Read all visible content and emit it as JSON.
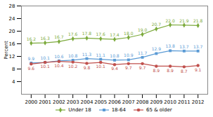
{
  "chart_data": {
    "type": "line",
    "x": [
      2000,
      2001,
      2002,
      2003,
      2004,
      2005,
      2006,
      2007,
      2008,
      2009,
      2010,
      2011,
      2012
    ],
    "series": [
      {
        "name": "Under 18",
        "color": "#7caa3c",
        "marker": "diamond",
        "values": [
          16.2,
          16.3,
          16.7,
          17.6,
          17.8,
          17.6,
          17.4,
          18.0,
          19.0,
          20.7,
          22.0,
          21.9,
          21.8
        ],
        "value_labels": [
          "16.2",
          "16.3",
          "16.7",
          "17.6",
          "17.8",
          "17.6",
          "17.4",
          "18.0",
          "19.0",
          "20.7",
          "22.0",
          "21.9",
          "21.8"
        ]
      },
      {
        "name": "18-64",
        "color": "#5b9bd5",
        "marker": "square",
        "values": [
          9.9,
          10.1,
          10.6,
          10.8,
          11.3,
          11.1,
          10.8,
          10.9,
          11.7,
          12.9,
          13.8,
          13.7,
          13.7
        ],
        "value_labels": [
          "9.9",
          "10.1",
          "10.6",
          "10.8",
          "11.3",
          "11.1",
          "10.8",
          "10.9",
          "11.7",
          "12.9",
          "13.8",
          "13.7",
          "13.7"
        ]
      },
      {
        "name": "65 & older",
        "color": "#c0504d",
        "marker": "circle",
        "values": [
          9.6,
          10.1,
          10.4,
          10.2,
          9.8,
          10.1,
          9.4,
          9.7,
          9.7,
          8.9,
          8.9,
          8.7,
          9.1
        ],
        "value_labels": [
          "9.6",
          "10.1",
          "10.4",
          "10.2",
          "9.8",
          "10.1",
          "9.4",
          "9.7",
          "9.7",
          "8.9",
          "8.9",
          "8.7",
          "9.1"
        ]
      }
    ],
    "ylabel": "Percent",
    "xlim": [
      1999.3,
      2012.7
    ],
    "xticks": [
      2000,
      2001,
      2002,
      2003,
      2004,
      2005,
      2006,
      2007,
      2008,
      2009,
      2010,
      2011,
      2012
    ],
    "ylim": [
      0,
      28
    ],
    "yticks": [
      4,
      8,
      12,
      16,
      20,
      24,
      28
    ],
    "grid": false,
    "legend": "bottom",
    "data_labels": true
  }
}
